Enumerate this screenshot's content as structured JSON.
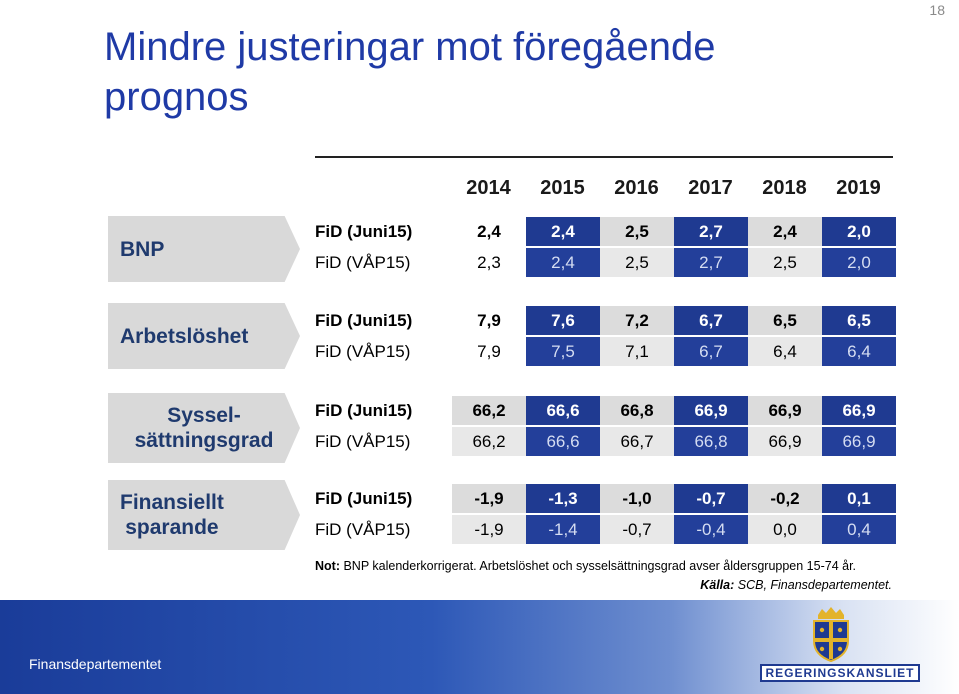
{
  "page_number": "18",
  "title": "Mindre justeringar mot föregående prognos",
  "years": [
    "2014",
    "2015",
    "2016",
    "2017",
    "2018",
    "2019"
  ],
  "sections": [
    {
      "label": "BNP",
      "rows": [
        {
          "name": "FiD (Juni15)",
          "values": [
            "2,4",
            "2,4",
            "2,5",
            "2,7",
            "2,4",
            "2,0"
          ]
        },
        {
          "name": "FiD (VÅP15)",
          "values": [
            "2,3",
            "2,4",
            "2,5",
            "2,7",
            "2,5",
            "2,0"
          ]
        }
      ]
    },
    {
      "label": "Arbetslöshet",
      "rows": [
        {
          "name": "FiD (Juni15)",
          "values": [
            "7,9",
            "7,6",
            "7,2",
            "6,7",
            "6,5",
            "6,5"
          ]
        },
        {
          "name": "FiD (VÅP15)",
          "values": [
            "7,9",
            "7,5",
            "7,1",
            "6,7",
            "6,4",
            "6,4"
          ]
        }
      ]
    },
    {
      "label_line1": "Syssel-",
      "label_line2": "sättningsgrad",
      "rows": [
        {
          "name": "FiD (Juni15)",
          "values": [
            "66,2",
            "66,6",
            "66,8",
            "66,9",
            "66,9",
            "66,9"
          ]
        },
        {
          "name": "FiD (VÅP15)",
          "values": [
            "66,2",
            "66,6",
            "66,7",
            "66,8",
            "66,9",
            "66,9"
          ]
        }
      ]
    },
    {
      "label_line1": "Finansiellt",
      "label_line2": "sparande",
      "rows": [
        {
          "name": "FiD (Juni15)",
          "values": [
            "-1,9",
            "-1,3",
            "-1,0",
            "-0,7",
            "-0,2",
            "0,1"
          ]
        },
        {
          "name": "FiD (VÅP15)",
          "values": [
            "-1,9",
            "-1,4",
            "-0,7",
            "-0,4",
            "0,0",
            "0,4"
          ]
        }
      ]
    }
  ],
  "note_label": "Not:",
  "note_text": " BNP kalenderkorrigerat. Arbetslöshet och sysselsättningsgrad avser åldersgruppen  15-74 år.",
  "source_label": "Källa:",
  "source_text": " SCB, Finansdepartementet.",
  "footer_text": "Finansdepartementet",
  "logo_text": "REGERINGSKANSLIET",
  "colors": {
    "title": "#1f3aa6",
    "dark_cell": "#1f3a91",
    "gray_cell": "#dcdcdc",
    "footer": "#1a3c99"
  }
}
